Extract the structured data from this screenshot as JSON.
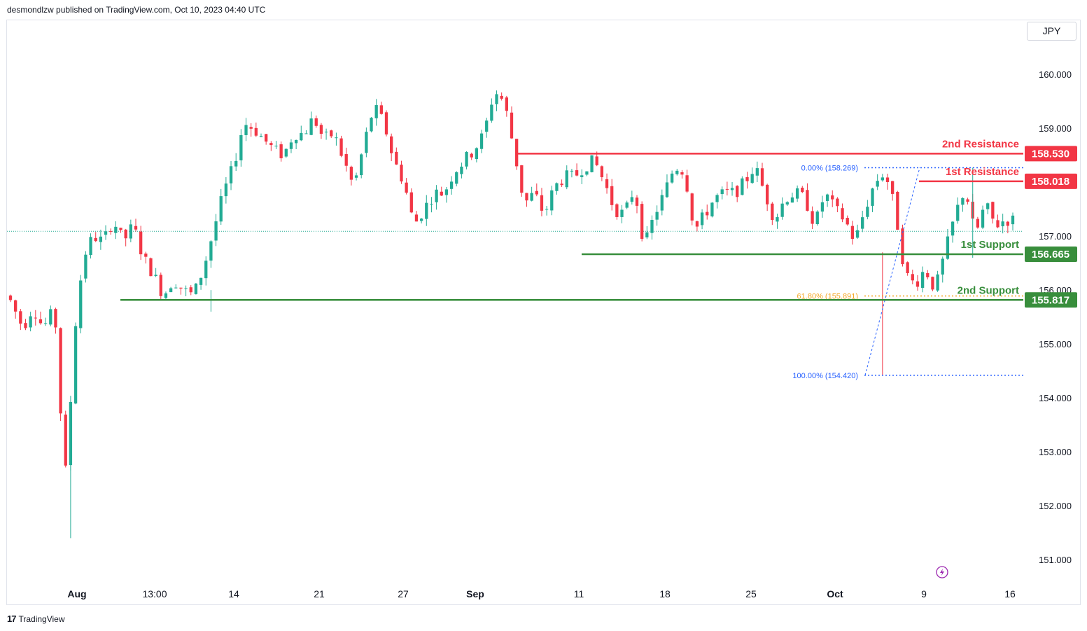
{
  "header": {
    "published": "desmondlzw published on TradingView.com, Oct 10, 2023 04:40 UTC"
  },
  "currency": "JPY",
  "footer": {
    "logo": "17",
    "brand": "TradingView"
  },
  "colors": {
    "up": "#22ab94",
    "down": "#f23645",
    "resistance": "#f23645",
    "support": "#388e3c",
    "fib": "#2962ff",
    "fib_golden": "#f5a623"
  },
  "chart_data": {
    "type": "candlestick",
    "symbol_currency": "JPY",
    "y_ticks": [
      "160.000",
      "159.000",
      "158.000",
      "157.000",
      "156.000",
      "155.000",
      "154.000",
      "153.000",
      "152.000",
      "151.000"
    ],
    "x_ticks": [
      "Aug",
      "13:00",
      "14",
      "21",
      "27",
      "Sep",
      "11",
      "18",
      "25",
      "Oct",
      "9",
      "16"
    ],
    "ylim": [
      150.6,
      160.6
    ],
    "levels": [
      {
        "name": "2nd Resistance",
        "value": 158.53,
        "tag": "158.530",
        "kind": "resistance"
      },
      {
        "name": "1st Resistance",
        "value": 158.018,
        "tag": "158.018",
        "kind": "resistance"
      },
      {
        "name": "1st Support",
        "value": 156.665,
        "tag": "156.665",
        "kind": "support"
      },
      {
        "name": "2nd Support",
        "value": 155.817,
        "tag": "155.817",
        "kind": "support"
      }
    ],
    "fibonacci": [
      {
        "label": "0.00% (158.269)",
        "value": 158.269
      },
      {
        "label": "61.80% (155.891)",
        "value": 155.891
      },
      {
        "label": "100.00% (154.420)",
        "value": 154.42
      }
    ],
    "last_price": 157.09,
    "path": [
      [
        0,
        155.9
      ],
      [
        3,
        155.3
      ],
      [
        5,
        155.7
      ],
      [
        7,
        155.3
      ],
      [
        9,
        155.6
      ],
      [
        10,
        155.1
      ],
      [
        11,
        152.4
      ],
      [
        12,
        152.9
      ],
      [
        13,
        155.0
      ],
      [
        15,
        156.6
      ],
      [
        17,
        157.0
      ],
      [
        19,
        156.9
      ],
      [
        21,
        157.3
      ],
      [
        23,
        156.9
      ],
      [
        25,
        157.2
      ],
      [
        27,
        156.6
      ],
      [
        29,
        156.3
      ],
      [
        31,
        155.9
      ],
      [
        33,
        156.2
      ],
      [
        35,
        156.0
      ],
      [
        37,
        155.9
      ],
      [
        39,
        156.4
      ],
      [
        41,
        157.1
      ],
      [
        43,
        157.8
      ],
      [
        45,
        158.3
      ],
      [
        47,
        159.1
      ],
      [
        49,
        159.0
      ],
      [
        51,
        158.8
      ],
      [
        53,
        158.6
      ],
      [
        55,
        158.5
      ],
      [
        57,
        158.9
      ],
      [
        59,
        158.9
      ],
      [
        61,
        159.2
      ],
      [
        63,
        158.8
      ],
      [
        65,
        158.9
      ],
      [
        67,
        158.4
      ],
      [
        69,
        157.9
      ],
      [
        71,
        158.7
      ],
      [
        73,
        159.4
      ],
      [
        75,
        159.1
      ],
      [
        77,
        158.4
      ],
      [
        79,
        158.0
      ],
      [
        81,
        157.2
      ],
      [
        83,
        157.5
      ],
      [
        85,
        157.8
      ],
      [
        87,
        157.8
      ],
      [
        89,
        158.2
      ],
      [
        91,
        158.4
      ],
      [
        93,
        158.6
      ],
      [
        95,
        158.9
      ],
      [
        97,
        159.7
      ],
      [
        99,
        159.5
      ],
      [
        101,
        158.6
      ],
      [
        103,
        157.6
      ],
      [
        105,
        157.8
      ],
      [
        107,
        157.4
      ],
      [
        109,
        157.9
      ],
      [
        111,
        158.1
      ],
      [
        113,
        158.1
      ],
      [
        115,
        158.3
      ],
      [
        117,
        158.4
      ],
      [
        119,
        158.0
      ],
      [
        121,
        157.5
      ],
      [
        123,
        157.4
      ],
      [
        125,
        157.9
      ],
      [
        127,
        156.8
      ],
      [
        129,
        157.4
      ],
      [
        131,
        157.8
      ],
      [
        133,
        158.3
      ],
      [
        135,
        158.2
      ],
      [
        137,
        157.1
      ],
      [
        139,
        157.4
      ],
      [
        141,
        157.7
      ],
      [
        143,
        157.8
      ],
      [
        145,
        157.8
      ],
      [
        147,
        158.0
      ],
      [
        149,
        158.3
      ],
      [
        151,
        157.8
      ],
      [
        153,
        157.3
      ],
      [
        155,
        157.7
      ],
      [
        157,
        157.8
      ],
      [
        159,
        157.7
      ],
      [
        161,
        157.2
      ],
      [
        163,
        157.8
      ],
      [
        165,
        157.5
      ],
      [
        167,
        157.3
      ],
      [
        169,
        156.9
      ],
      [
        171,
        157.5
      ],
      [
        173,
        158.0
      ],
      [
        175,
        158.2
      ],
      [
        177,
        157.5
      ],
      [
        179,
        156.3
      ],
      [
        181,
        156.1
      ],
      [
        183,
        156.4
      ],
      [
        185,
        156.0
      ],
      [
        187,
        156.7
      ],
      [
        189,
        157.4
      ],
      [
        191,
        157.9
      ],
      [
        193,
        157.0
      ],
      [
        195,
        157.6
      ],
      [
        197,
        157.2
      ],
      [
        199,
        157.3
      ]
    ]
  }
}
